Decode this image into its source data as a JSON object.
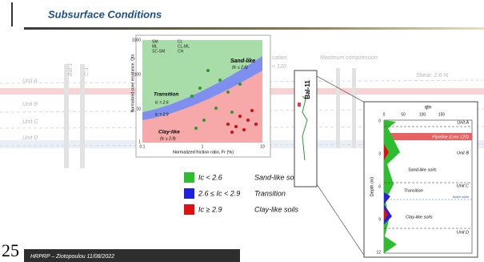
{
  "header": {
    "title": "Subsurface Conditions"
  },
  "background": {
    "units": [
      "Unit A",
      "Unit B",
      "Unit C",
      "Unit D"
    ],
    "borings": [
      "Bal-1",
      "C-1"
    ],
    "notes": [
      "cation",
      "= 120",
      "Maximum compression",
      "Shear: 2.6 %"
    ]
  },
  "classification_chart": {
    "legend": [
      "SM",
      "ML",
      "SC-SM",
      "CL",
      "CL-ML",
      "CH"
    ],
    "y_axis_label": "Normalized cone resistance, Qtn",
    "x_axis_label": "Normalized friction ratio, Fr (%)",
    "yticks": [
      "1000",
      "100",
      "10",
      "1"
    ],
    "xticks": [
      "0.1",
      "1",
      "10"
    ],
    "regions": [
      "Sand-like",
      "(Ic ≤ 2.6)",
      "Transition",
      "Ic = 2.6",
      "Ic = 2.9",
      "Clay-like",
      "(Ic ≥ 2.9)"
    ]
  },
  "soil_legend": [
    {
      "range": "Ic < 2.6",
      "label": "Sand-like soils"
    },
    {
      "range": "2.6 ≤ Ic < 2.9",
      "label": "Transition"
    },
    {
      "range": "Ic ≥ 2.9",
      "label": "Clay-like soils"
    }
  ],
  "boring": {
    "label": "Bal-11"
  },
  "profile": {
    "x_label": "qtn",
    "xticks": [
      "0",
      "50",
      "100",
      "150"
    ],
    "y_label": "Depth (m)",
    "yticks": [
      "0",
      "3",
      "6",
      "9",
      "12"
    ],
    "annotations": [
      "Unit A",
      "Pipeline (Line 120)",
      "Unit B",
      "Sand-like soils",
      "Unit C",
      "Transition",
      "Water table",
      "Clay-like soils",
      "Unit D"
    ]
  },
  "footer": {
    "page": "25",
    "text": "HRPRP – Ziotopoulou 11/08/2022"
  }
}
